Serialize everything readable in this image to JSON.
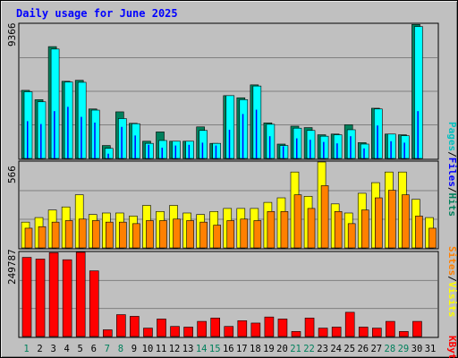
{
  "title": "Daily usage for June 2025",
  "colors": {
    "hits_back": "#00805c",
    "hits_front": "#00ffff",
    "files": "#0000ff",
    "pages": "#00c0c0",
    "visits_back": "#ffff00",
    "visits_front": "#ff8000",
    "sites": "#ff8000",
    "kbytes": "#ff0000",
    "weekend_day": "#00805c",
    "title_color": "#0000ff"
  },
  "chart_data": [
    {
      "type": "bar",
      "panel": "hits-files-pages",
      "y_max_label": "9366",
      "ylim": [
        0,
        9366
      ],
      "legend": {
        "pages": "Pages",
        "sep1": "/",
        "files": "Files",
        "sep2": "/",
        "hits": "Hits"
      },
      "categories": [
        "1",
        "2",
        "3",
        "4",
        "5",
        "6",
        "7",
        "8",
        "9",
        "10",
        "11",
        "12",
        "13",
        "14",
        "15",
        "16",
        "17",
        "18",
        "19",
        "20",
        "21",
        "22",
        "23",
        "24",
        "25",
        "26",
        "27",
        "28",
        "29",
        "30",
        "31"
      ],
      "series": [
        {
          "name": "Hits",
          "values": [
            4750,
            4100,
            7800,
            5380,
            5450,
            3450,
            900,
            3250,
            2450,
            1200,
            1850,
            1200,
            1200,
            2200,
            1050,
            4380,
            4230,
            5130,
            2480,
            1000,
            2250,
            2150,
            1650,
            1700,
            2350,
            1100,
            3500,
            1700,
            1650,
            9350,
            0
          ]
        },
        {
          "name": "Files",
          "values": [
            4650,
            3950,
            7630,
            5330,
            5310,
            3370,
            700,
            2780,
            2420,
            1050,
            1250,
            1200,
            1200,
            1950,
            1050,
            4380,
            4100,
            5050,
            2380,
            900,
            2110,
            1950,
            1550,
            1650,
            2000,
            1000,
            3450,
            1700,
            1580,
            9200,
            0
          ]
        },
        {
          "name": "Pages",
          "values": [
            2600,
            2400,
            3300,
            3600,
            2900,
            2500,
            330,
            2200,
            1600,
            950,
            750,
            900,
            950,
            1100,
            900,
            2000,
            3100,
            3400,
            1550,
            850,
            1400,
            1300,
            1150,
            1050,
            1550,
            700,
            2300,
            1200,
            1100,
            3300,
            0
          ]
        }
      ]
    },
    {
      "type": "bar",
      "panel": "visits-sites",
      "y_max_label": "566",
      "ylim": [
        0,
        566
      ],
      "legend": {
        "sites": "Sites",
        "sep": "/",
        "visits": "Visits"
      },
      "categories": [
        "1",
        "2",
        "3",
        "4",
        "5",
        "6",
        "7",
        "8",
        "9",
        "10",
        "11",
        "12",
        "13",
        "14",
        "15",
        "16",
        "17",
        "18",
        "19",
        "20",
        "21",
        "22",
        "23",
        "24",
        "25",
        "26",
        "27",
        "28",
        "29",
        "30",
        "31"
      ],
      "series": [
        {
          "name": "Visits",
          "values": [
            170,
            200,
            250,
            270,
            350,
            220,
            230,
            230,
            210,
            280,
            240,
            280,
            230,
            220,
            240,
            260,
            260,
            260,
            300,
            330,
            500,
            340,
            566,
            290,
            230,
            360,
            430,
            500,
            500,
            320,
            200
          ]
        },
        {
          "name": "Sites",
          "values": [
            130,
            140,
            170,
            180,
            190,
            180,
            170,
            170,
            160,
            180,
            180,
            190,
            180,
            170,
            150,
            180,
            190,
            180,
            240,
            240,
            350,
            260,
            410,
            240,
            160,
            250,
            330,
            380,
            350,
            210,
            130
          ]
        }
      ]
    },
    {
      "type": "bar",
      "panel": "kbytes",
      "y_max_label": "249787",
      "ylim": [
        0,
        249787
      ],
      "legend": {
        "kbytes": "KBytes"
      },
      "categories": [
        "1",
        "2",
        "3",
        "4",
        "5",
        "6",
        "7",
        "8",
        "9",
        "10",
        "11",
        "12",
        "13",
        "14",
        "15",
        "16",
        "17",
        "18",
        "19",
        "20",
        "21",
        "22",
        "23",
        "24",
        "25",
        "26",
        "27",
        "28",
        "29",
        "30",
        "31"
      ],
      "series": [
        {
          "name": "KBytes",
          "values": [
            235000,
            230000,
            249000,
            228000,
            250000,
            195000,
            20000,
            65000,
            60000,
            25000,
            52000,
            30000,
            28000,
            45000,
            55000,
            30000,
            47000,
            40000,
            58000,
            52000,
            15000,
            55000,
            25000,
            28000,
            72000,
            28000,
            25000,
            45000,
            15000,
            45000,
            0
          ]
        }
      ]
    }
  ],
  "x_axis": {
    "labels": [
      "1",
      "2",
      "3",
      "4",
      "5",
      "6",
      "7",
      "8",
      "9",
      "10",
      "11",
      "12",
      "13",
      "14",
      "15",
      "16",
      "17",
      "18",
      "19",
      "20",
      "21",
      "22",
      "23",
      "24",
      "25",
      "26",
      "27",
      "28",
      "29",
      "30",
      "31"
    ],
    "weekend": [
      true,
      false,
      false,
      false,
      false,
      false,
      true,
      true,
      false,
      false,
      false,
      false,
      false,
      true,
      true,
      false,
      false,
      false,
      false,
      false,
      true,
      true,
      false,
      false,
      false,
      false,
      false,
      true,
      true,
      false,
      false
    ]
  }
}
